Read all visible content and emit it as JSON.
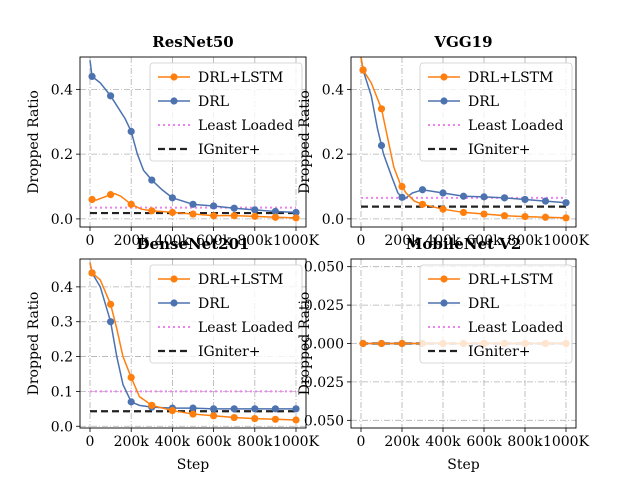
{
  "figure": {
    "type": "line",
    "xlabel": "Step",
    "ylabel": "Dropped Ratio",
    "legend": [
      "DRL+LSTM",
      "DRL",
      "Least Loaded",
      "IGniter+"
    ],
    "colors": {
      "DRL+LSTM": "#ff7f0e",
      "DRL": "#4c72b0",
      "Least Loaded": "#ee82ee",
      "IGniter+": "#222222"
    }
  },
  "chart_data": [
    {
      "type": "line",
      "title": "ResNet50",
      "xlabel": "",
      "ylabel": "Dropped Ratio",
      "x_ticks": [
        "0",
        "200k",
        "400k",
        "600k",
        "800k",
        "1000K"
      ],
      "y_ticks": [
        "0.0",
        "0.2",
        "0.4"
      ],
      "ylim": [
        -0.025,
        0.5
      ],
      "xlim": [
        0,
        1000000
      ],
      "legend_position": "top-right",
      "grid": true,
      "series": [
        {
          "name": "DRL+LSTM",
          "style": "line-marker",
          "x": [
            0,
            10000,
            30000,
            60000,
            100000,
            120000,
            150000,
            200000,
            250000,
            300000,
            400000,
            500000,
            600000,
            700000,
            800000,
            900000,
            1000000
          ],
          "y": [
            0.06,
            0.06,
            0.058,
            0.065,
            0.075,
            0.078,
            0.07,
            0.045,
            0.03,
            0.025,
            0.02,
            0.015,
            0.01,
            0.01,
            0.008,
            0.005,
            0.003
          ],
          "marker_x": [
            10000,
            100000,
            200000,
            300000,
            400000,
            500000,
            600000,
            700000,
            800000,
            900000,
            1000000
          ]
        },
        {
          "name": "DRL",
          "style": "line-marker",
          "x": [
            0,
            10000,
            50000,
            100000,
            140000,
            170000,
            200000,
            230000,
            260000,
            300000,
            350000,
            400000,
            450000,
            500000,
            600000,
            700000,
            800000,
            900000,
            1000000
          ],
          "y": [
            0.49,
            0.44,
            0.42,
            0.38,
            0.34,
            0.31,
            0.27,
            0.2,
            0.15,
            0.12,
            0.09,
            0.065,
            0.055,
            0.045,
            0.04,
            0.033,
            0.028,
            0.023,
            0.02
          ],
          "marker_x": [
            10000,
            100000,
            200000,
            300000,
            400000,
            500000,
            600000,
            700000,
            800000,
            900000,
            1000000
          ]
        },
        {
          "name": "Least Loaded",
          "style": "dotted",
          "x": [
            0,
            1000000
          ],
          "y": [
            0.035,
            0.035
          ]
        },
        {
          "name": "IGniter+",
          "style": "dashed",
          "x": [
            0,
            1000000
          ],
          "y": [
            0.018,
            0.018
          ]
        }
      ]
    },
    {
      "type": "line",
      "title": "VGG19",
      "xlabel": "",
      "ylabel": "Dropped Ratio",
      "x_ticks": [
        "0",
        "200k",
        "400k",
        "600k",
        "800k",
        "1000K"
      ],
      "y_ticks": [
        "0.0",
        "0.2",
        "0.4"
      ],
      "ylim": [
        -0.025,
        0.5
      ],
      "xlim": [
        0,
        1000000
      ],
      "legend_position": "top-right",
      "grid": true,
      "series": [
        {
          "name": "DRL+LSTM",
          "style": "line-marker",
          "x": [
            0,
            10000,
            50000,
            100000,
            130000,
            160000,
            190000,
            220000,
            260000,
            300000,
            400000,
            500000,
            600000,
            700000,
            800000,
            900000,
            1000000
          ],
          "y": [
            0.5,
            0.46,
            0.42,
            0.34,
            0.25,
            0.16,
            0.11,
            0.08,
            0.055,
            0.045,
            0.03,
            0.02,
            0.015,
            0.01,
            0.007,
            0.005,
            0.003
          ],
          "marker_x": [
            10000,
            100000,
            200000,
            300000,
            400000,
            500000,
            600000,
            700000,
            800000,
            900000,
            1000000
          ]
        },
        {
          "name": "DRL",
          "style": "line-marker",
          "x": [
            0,
            10000,
            50000,
            80000,
            110000,
            150000,
            180000,
            210000,
            250000,
            300000,
            400000,
            500000,
            600000,
            700000,
            800000,
            900000,
            1000000
          ],
          "y": [
            0.5,
            0.46,
            0.38,
            0.28,
            0.2,
            0.13,
            0.08,
            0.06,
            0.08,
            0.09,
            0.08,
            0.07,
            0.068,
            0.065,
            0.06,
            0.055,
            0.05
          ],
          "marker_x": [
            10000,
            100000,
            200000,
            300000,
            400000,
            500000,
            600000,
            700000,
            800000,
            900000,
            1000000
          ]
        },
        {
          "name": "Least Loaded",
          "style": "dotted",
          "x": [
            0,
            1000000
          ],
          "y": [
            0.065,
            0.065
          ]
        },
        {
          "name": "IGniter+",
          "style": "dashed",
          "x": [
            0,
            1000000
          ],
          "y": [
            0.038,
            0.038
          ]
        }
      ]
    },
    {
      "type": "line",
      "title": "DenseNet201",
      "xlabel": "Step",
      "ylabel": "Dropped Ratio",
      "x_ticks": [
        "0",
        "200k",
        "400k",
        "600k",
        "800k",
        "1000K"
      ],
      "y_ticks": [
        "0.0",
        "0.1",
        "0.2",
        "0.3",
        "0.4"
      ],
      "ylim": [
        -0.005,
        0.48
      ],
      "xlim": [
        0,
        1000000
      ],
      "legend_position": "top-right",
      "grid": true,
      "series": [
        {
          "name": "DRL+LSTM",
          "style": "line-marker",
          "x": [
            0,
            10000,
            50000,
            100000,
            130000,
            160000,
            200000,
            240000,
            300000,
            400000,
            500000,
            600000,
            700000,
            800000,
            900000,
            1000000
          ],
          "y": [
            0.47,
            0.44,
            0.42,
            0.35,
            0.28,
            0.2,
            0.14,
            0.085,
            0.06,
            0.045,
            0.035,
            0.03,
            0.025,
            0.022,
            0.02,
            0.018
          ],
          "marker_x": [
            10000,
            100000,
            200000,
            300000,
            400000,
            500000,
            600000,
            700000,
            800000,
            900000,
            1000000
          ]
        },
        {
          "name": "DRL",
          "style": "line-marker",
          "x": [
            0,
            10000,
            50000,
            100000,
            130000,
            160000,
            200000,
            240000,
            300000,
            400000,
            500000,
            600000,
            700000,
            800000,
            900000,
            1000000
          ],
          "y": [
            0.47,
            0.44,
            0.4,
            0.3,
            0.2,
            0.12,
            0.07,
            0.06,
            0.055,
            0.052,
            0.052,
            0.05,
            0.05,
            0.05,
            0.05,
            0.05
          ],
          "marker_x": [
            10000,
            100000,
            200000,
            300000,
            400000,
            500000,
            600000,
            700000,
            800000,
            900000,
            1000000
          ]
        },
        {
          "name": "Least Loaded",
          "style": "dotted",
          "x": [
            0,
            1000000
          ],
          "y": [
            0.1,
            0.1
          ]
        },
        {
          "name": "IGniter+",
          "style": "dashed",
          "x": [
            0,
            1000000
          ],
          "y": [
            0.043,
            0.043
          ]
        }
      ]
    },
    {
      "type": "line",
      "title": "MobileNet V2",
      "xlabel": "Step",
      "ylabel": "Dropped Ratio",
      "x_ticks": [
        "0",
        "200k",
        "400k",
        "600k",
        "800k",
        "1000K"
      ],
      "y_ticks": [
        "0.050",
        "0.025",
        "0.000",
        "0.025",
        "0.050"
      ],
      "ylim": [
        -0.055,
        0.055
      ],
      "xlim": [
        0,
        1000000
      ],
      "legend_position": "top-right",
      "grid": true,
      "series": [
        {
          "name": "DRL+LSTM",
          "style": "line-marker",
          "x": [
            10000,
            1000000
          ],
          "y": [
            0,
            0
          ],
          "marker_x": [
            10000,
            100000,
            200000,
            300000,
            400000,
            500000,
            600000,
            700000,
            800000,
            900000,
            1000000
          ]
        },
        {
          "name": "DRL",
          "style": "line-marker",
          "x": [
            10000,
            1000000
          ],
          "y": [
            0,
            0
          ],
          "marker_x": [
            10000,
            100000,
            200000,
            300000,
            400000,
            500000,
            600000,
            700000,
            800000,
            900000,
            1000000
          ]
        },
        {
          "name": "Least Loaded",
          "style": "dotted",
          "x": [
            0,
            1000000
          ],
          "y": [
            0,
            0
          ]
        },
        {
          "name": "IGniter+",
          "style": "dashed",
          "x": [
            0,
            1000000
          ],
          "y": [
            0,
            0
          ]
        }
      ]
    }
  ]
}
